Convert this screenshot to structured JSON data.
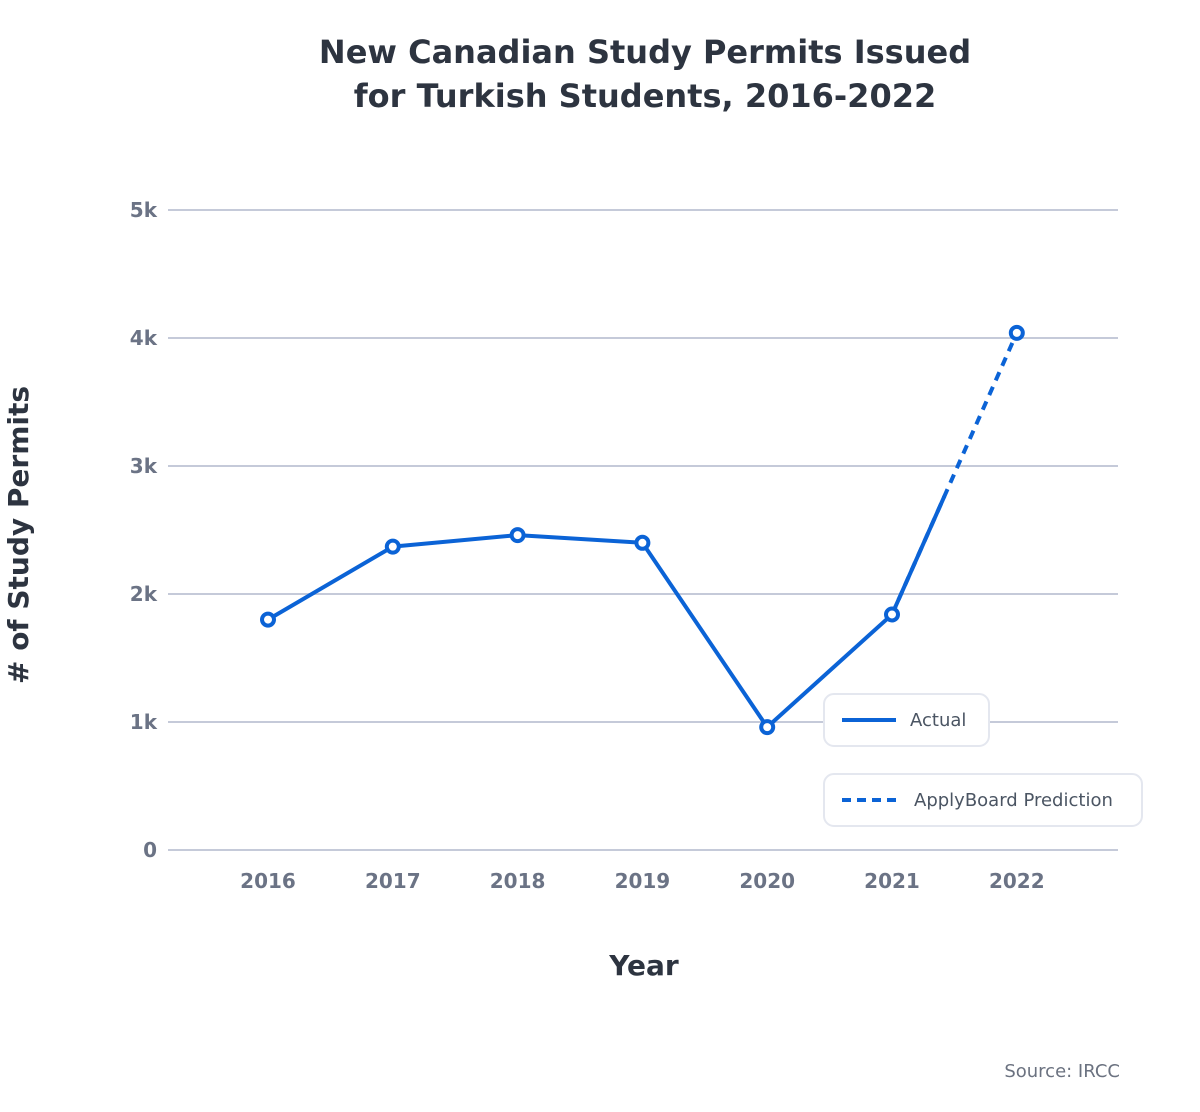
{
  "title_lines": [
    "New Canadian Study Permits Issued",
    "for Turkish Students, 2016-2022"
  ],
  "source": "Source: IRCC",
  "chart_data": {
    "type": "line",
    "title": "New Canadian Study Permits Issued for Turkish Students, 2016-2022",
    "xlabel": "Year",
    "ylabel": "# of Study Permits",
    "categories": [
      "2016",
      "2017",
      "2018",
      "2019",
      "2020",
      "2021",
      "2022"
    ],
    "ylim": [
      0,
      5000
    ],
    "yticks": [
      0,
      1000,
      2000,
      3000,
      4000,
      5000
    ],
    "ytick_labels": [
      "0",
      "1k",
      "2k",
      "3k",
      "4k",
      "5k"
    ],
    "grid": true,
    "series": [
      {
        "name": "Actual",
        "style": "solid",
        "x": [
          "2016",
          "2017",
          "2018",
          "2019",
          "2020",
          "2021"
        ],
        "values": [
          1800,
          2370,
          2460,
          2400,
          960,
          1840
        ]
      },
      {
        "name": "ApplyBoard Prediction",
        "style": "dashed",
        "x": [
          "2021",
          "2022"
        ],
        "values": [
          1840,
          4040
        ]
      }
    ],
    "legend": [
      "Actual",
      "ApplyBoard Prediction"
    ],
    "colors": {
      "line": "#0b63d6",
      "grid": "#c5cad9",
      "tick": "#6b7385",
      "axis_title": "#2d3440"
    }
  }
}
